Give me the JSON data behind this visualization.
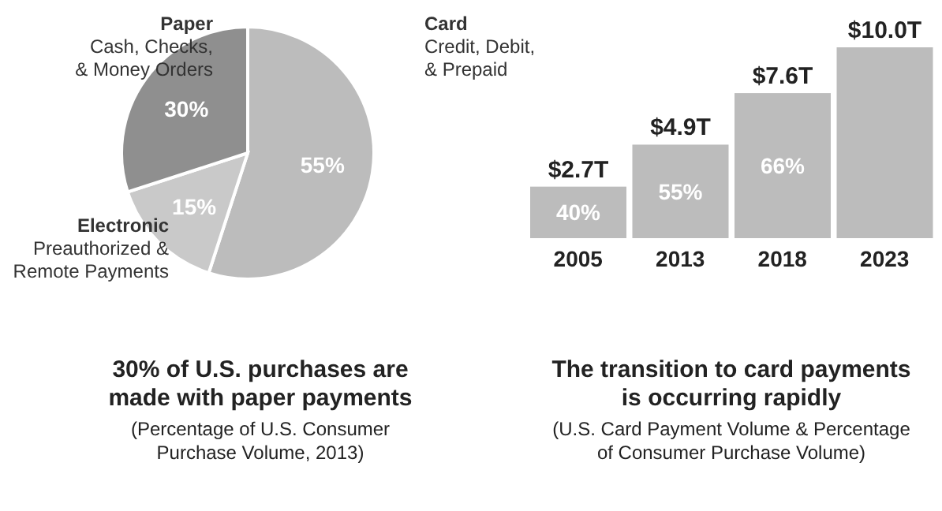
{
  "chart_data": [
    {
      "type": "pie",
      "title": "30% of U.S. purchases are\nmade with paper payments",
      "subtitle": "(Percentage of U.S. Consumer\nPurchase Volume, 2013)",
      "categories": [
        "Card\nCredit, Debit,\n& Prepaid",
        "Electronic\nPreauthorized &\nRemote Payments",
        "Paper\nCash, Checks,\n& Money Orders"
      ],
      "values": [
        55,
        15,
        30
      ],
      "colors": [
        "#bcbcbc",
        "#c9c9c9",
        "#8f8f8f"
      ],
      "value_labels": [
        "55%",
        "15%",
        "30%"
      ]
    },
    {
      "type": "bar",
      "title": "The transition to card payments\nis occurring rapidly",
      "subtitle": "(U.S. Card Payment Volume & Percentage\nof Consumer Purchase Volume)",
      "categories": [
        "2005",
        "2013",
        "2018",
        "2023"
      ],
      "values": [
        2.7,
        4.9,
        7.6,
        10.0
      ],
      "color": "#bcbcbc",
      "value_labels": [
        "$2.7T",
        "$4.9T",
        "$7.6T",
        "$10.0T"
      ],
      "annotations": [
        "40%",
        "55%",
        "66%"
      ]
    }
  ]
}
